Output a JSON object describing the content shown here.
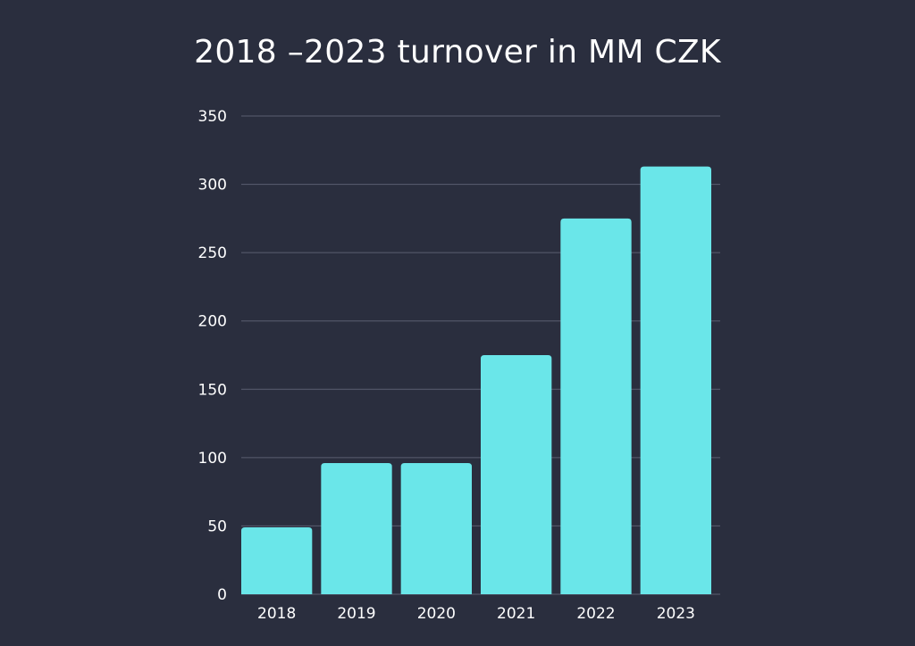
{
  "chart_data": {
    "type": "bar",
    "title": "2018 –2023 turnover in MM CZK",
    "xlabel": "",
    "ylabel": "",
    "categories": [
      "2018",
      "2019",
      "2020",
      "2021",
      "2022",
      "2023"
    ],
    "values": [
      49,
      96,
      96,
      175,
      275,
      313
    ],
    "ylim": [
      0,
      350
    ],
    "yticks": [
      "0",
      "50",
      "100",
      "150",
      "200",
      "250",
      "300",
      "350"
    ],
    "grid": true,
    "legend": "none",
    "colors": {
      "background": "#2a2e3e",
      "bar": "#6ae6e9",
      "grid": "#5a5f70",
      "text": "#ffffff"
    }
  }
}
